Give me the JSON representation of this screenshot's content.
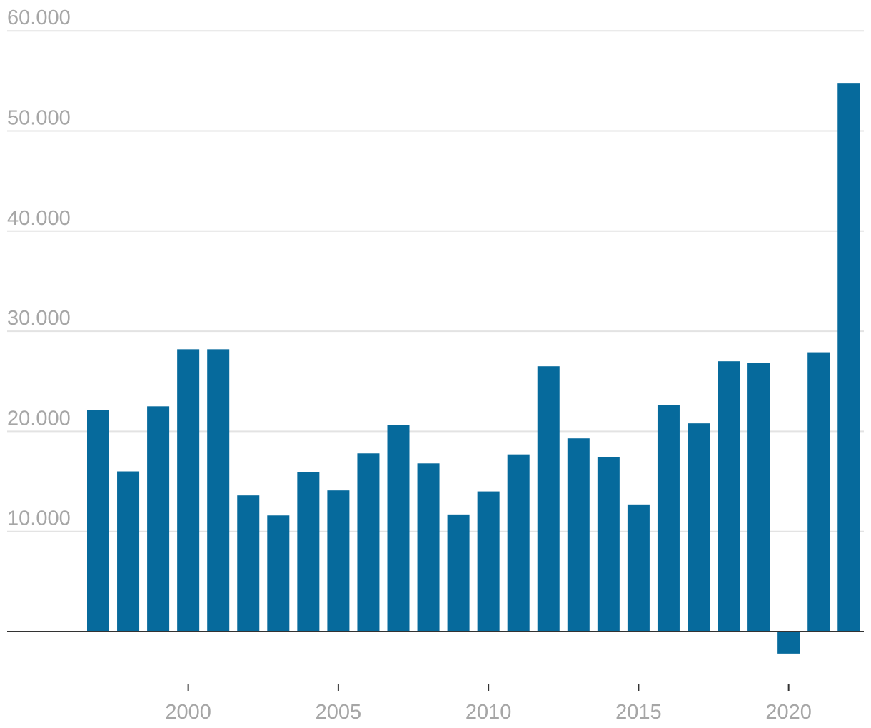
{
  "chart_data": {
    "type": "bar",
    "x": [
      1997,
      1998,
      1999,
      2000,
      2001,
      2002,
      2003,
      2004,
      2005,
      2006,
      2007,
      2008,
      2009,
      2010,
      2011,
      2012,
      2013,
      2014,
      2015,
      2016,
      2017,
      2018,
      2019,
      2020,
      2021,
      2022
    ],
    "values": [
      22100,
      16000,
      22500,
      28200,
      28200,
      13600,
      11600,
      15900,
      14100,
      17800,
      20600,
      16800,
      11700,
      14000,
      17700,
      26500,
      19300,
      17400,
      12700,
      22600,
      20800,
      27000,
      26800,
      -2200,
      27900,
      54800
    ],
    "ylim": [
      -5000,
      60000
    ],
    "y_ticks": [
      10000,
      20000,
      30000,
      40000,
      50000,
      60000
    ],
    "y_tick_labels": [
      "10.000",
      "20.000",
      "30.000",
      "40.000",
      "50.000",
      "60.000"
    ],
    "x_ticks": [
      2000,
      2005,
      2010,
      2015,
      2020
    ],
    "x_tick_labels": [
      "2000",
      "2005",
      "2010",
      "2015",
      "2020"
    ],
    "grid": true,
    "bar_color": "#066a9c"
  }
}
